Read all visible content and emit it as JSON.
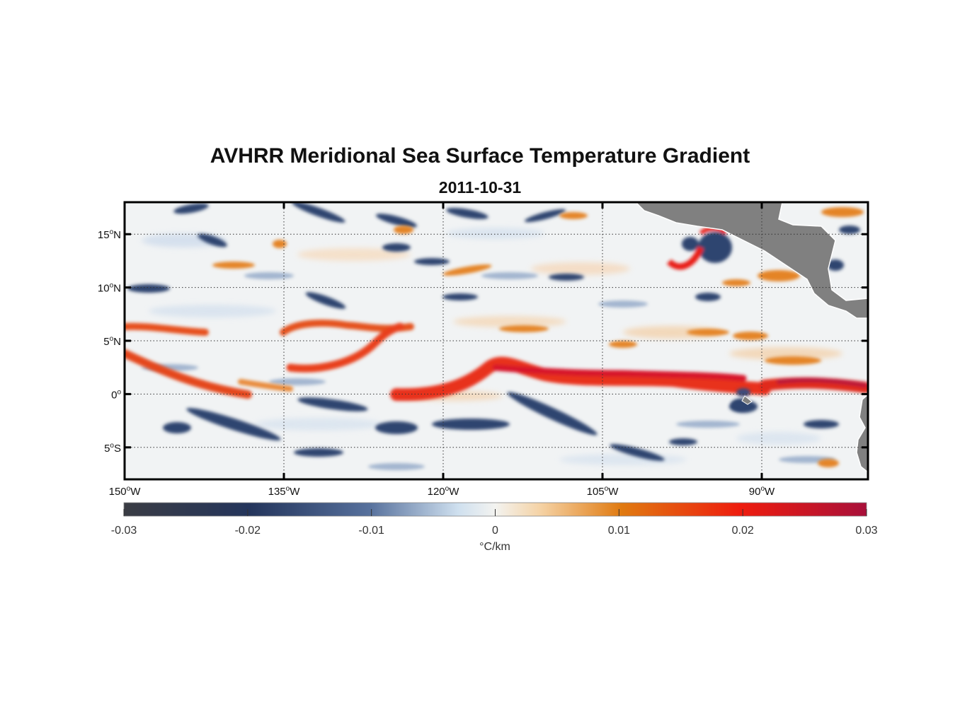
{
  "title": "AVHRR Meridional Sea Surface Temperature Gradient",
  "subtitle": "2011-10-31",
  "map": {
    "lon_range": [
      -150,
      -80
    ],
    "lat_range": [
      -8,
      18
    ],
    "lon_ticks": [
      {
        "value": -150,
        "deg": "150",
        "hemi": "W"
      },
      {
        "value": -135,
        "deg": "135",
        "hemi": "W"
      },
      {
        "value": -120,
        "deg": "120",
        "hemi": "W"
      },
      {
        "value": -105,
        "deg": "105",
        "hemi": "W"
      },
      {
        "value": -90,
        "deg": "90",
        "hemi": "W"
      }
    ],
    "lat_ticks": [
      {
        "value": 15,
        "deg": "15",
        "hemi": "N"
      },
      {
        "value": 10,
        "deg": "10",
        "hemi": "N"
      },
      {
        "value": 5,
        "deg": "5",
        "hemi": "N"
      },
      {
        "value": 0,
        "deg": "0",
        "hemi": ""
      },
      {
        "value": -5,
        "deg": "5",
        "hemi": "S"
      }
    ],
    "degree_symbol": "o",
    "grid": "dotted",
    "land_color": "#808080"
  },
  "colorbar": {
    "min": -0.03,
    "max": 0.03,
    "tick_labels": [
      "-0.03",
      "-0.02",
      "-0.01",
      "0",
      "0.01",
      "0.02",
      "0.03"
    ],
    "unit_label": "°C/km",
    "colors": [
      "#3a3c44",
      "#24355c",
      "#56709c",
      "#cfe0ef",
      "#f3f3f0",
      "#f5d3a6",
      "#e07a10",
      "#ee1c0e",
      "#a8103a"
    ]
  }
}
